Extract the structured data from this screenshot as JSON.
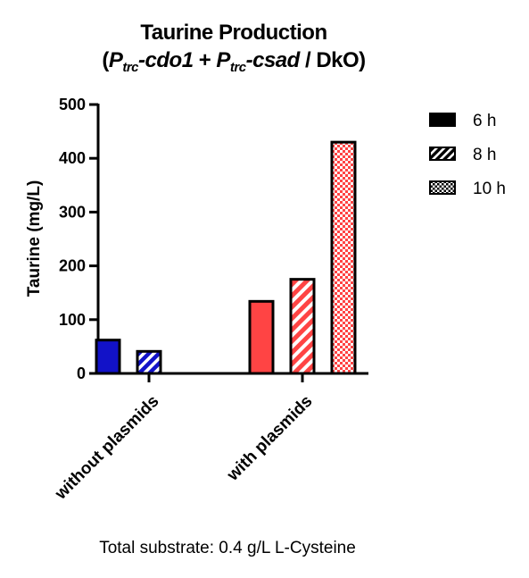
{
  "chart_data": {
    "type": "bar",
    "title_line1": "Taurine Production",
    "title_line2": {
      "open": "(",
      "p1": "P",
      "p1_sub": "trc",
      "gene1": "-cdo1",
      "plus": " + ",
      "p2": "P",
      "p2_sub": "trc",
      "gene2": "-csad",
      "tail": " / DkO)"
    },
    "ylabel": "Taurine (mg/L)",
    "xlabel": "",
    "ylim": [
      0,
      500
    ],
    "yticks": [
      "0",
      "100",
      "200",
      "300",
      "400",
      "500"
    ],
    "ytick_values": [
      0,
      100,
      200,
      300,
      400,
      500
    ],
    "categories": [
      "without plasmids",
      "with plasmids"
    ],
    "series": [
      {
        "name": "6 h",
        "pattern": "solid",
        "values": [
          62,
          134
        ]
      },
      {
        "name": "8 h",
        "pattern": "stripes",
        "values": [
          41,
          175
        ]
      },
      {
        "name": "10 h",
        "pattern": "checker",
        "values": [
          null,
          430
        ]
      }
    ],
    "category_colors": [
      "#1212c8",
      "#ff4444"
    ],
    "legend_position": "top-right",
    "grid": false,
    "footnote": "Total substrate: 0.4 g/L L-Cysteine"
  }
}
